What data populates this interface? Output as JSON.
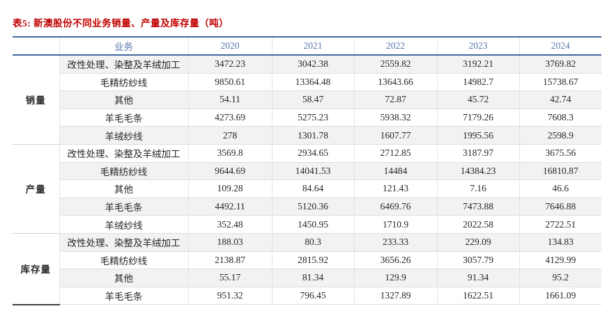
{
  "title": "表5: 新澳股份不同业务销量、产量及库存量（吨）",
  "colors": {
    "title_red": "#c00000",
    "header_blue_text": "#5876ad",
    "rule_blue": "#42699f",
    "stripe_gray": "#f2f2f2",
    "divider_gray": "#dedede",
    "bottom_left_rule": "#3f3f3f"
  },
  "table": {
    "business_header": "业务",
    "years": [
      "2020",
      "2021",
      "2022",
      "2023",
      "2024"
    ],
    "sections": [
      {
        "name": "销量",
        "rows": [
          {
            "business": "改性处理、染整及羊绒加工",
            "values": [
              "3472.23",
              "3042.38",
              "2559.82",
              "3192.21",
              "3769.82"
            ]
          },
          {
            "business": "毛精纺纱线",
            "values": [
              "9850.61",
              "13364.48",
              "13643.66",
              "14982.7",
              "15738.67"
            ]
          },
          {
            "business": "其他",
            "values": [
              "54.11",
              "58.47",
              "72.87",
              "45.72",
              "42.74"
            ]
          },
          {
            "business": "羊毛毛条",
            "values": [
              "4273.69",
              "5275.23",
              "5938.32",
              "7179.26",
              "7608.3"
            ]
          },
          {
            "business": "羊绒纱线",
            "values": [
              "278",
              "1301.78",
              "1607.77",
              "1995.56",
              "2598.9"
            ]
          }
        ]
      },
      {
        "name": "产量",
        "rows": [
          {
            "business": "改性处理、染整及羊绒加工",
            "values": [
              "3569.8",
              "2934.65",
              "2712.85",
              "3187.97",
              "3675.56"
            ]
          },
          {
            "business": "毛精纺纱线",
            "values": [
              "9644.69",
              "14041.53",
              "14484",
              "14384.23",
              "16810.87"
            ]
          },
          {
            "business": "其他",
            "values": [
              "109.28",
              "84.64",
              "121.43",
              "7.16",
              "46.6"
            ]
          },
          {
            "business": "羊毛毛条",
            "values": [
              "4492.11",
              "5120.36",
              "6469.76",
              "7473.88",
              "7646.88"
            ]
          },
          {
            "business": "羊绒纱线",
            "values": [
              "352.48",
              "1450.95",
              "1710.9",
              "2022.58",
              "2722.51"
            ]
          }
        ]
      },
      {
        "name": "库存量",
        "rows": [
          {
            "business": "改性处理、染整及羊绒加工",
            "values": [
              "188.03",
              "80.3",
              "233.33",
              "229.09",
              "134.83"
            ]
          },
          {
            "business": "毛精纺纱线",
            "values": [
              "2138.87",
              "2815.92",
              "3656.26",
              "3057.79",
              "4129.99"
            ]
          },
          {
            "business": "其他",
            "values": [
              "55.17",
              "81.34",
              "129.9",
              "91.34",
              "95.2"
            ]
          },
          {
            "business": "羊毛毛条",
            "values": [
              "951.32",
              "796.45",
              "1327.89",
              "1622.51",
              "1661.09"
            ]
          }
        ]
      }
    ]
  }
}
